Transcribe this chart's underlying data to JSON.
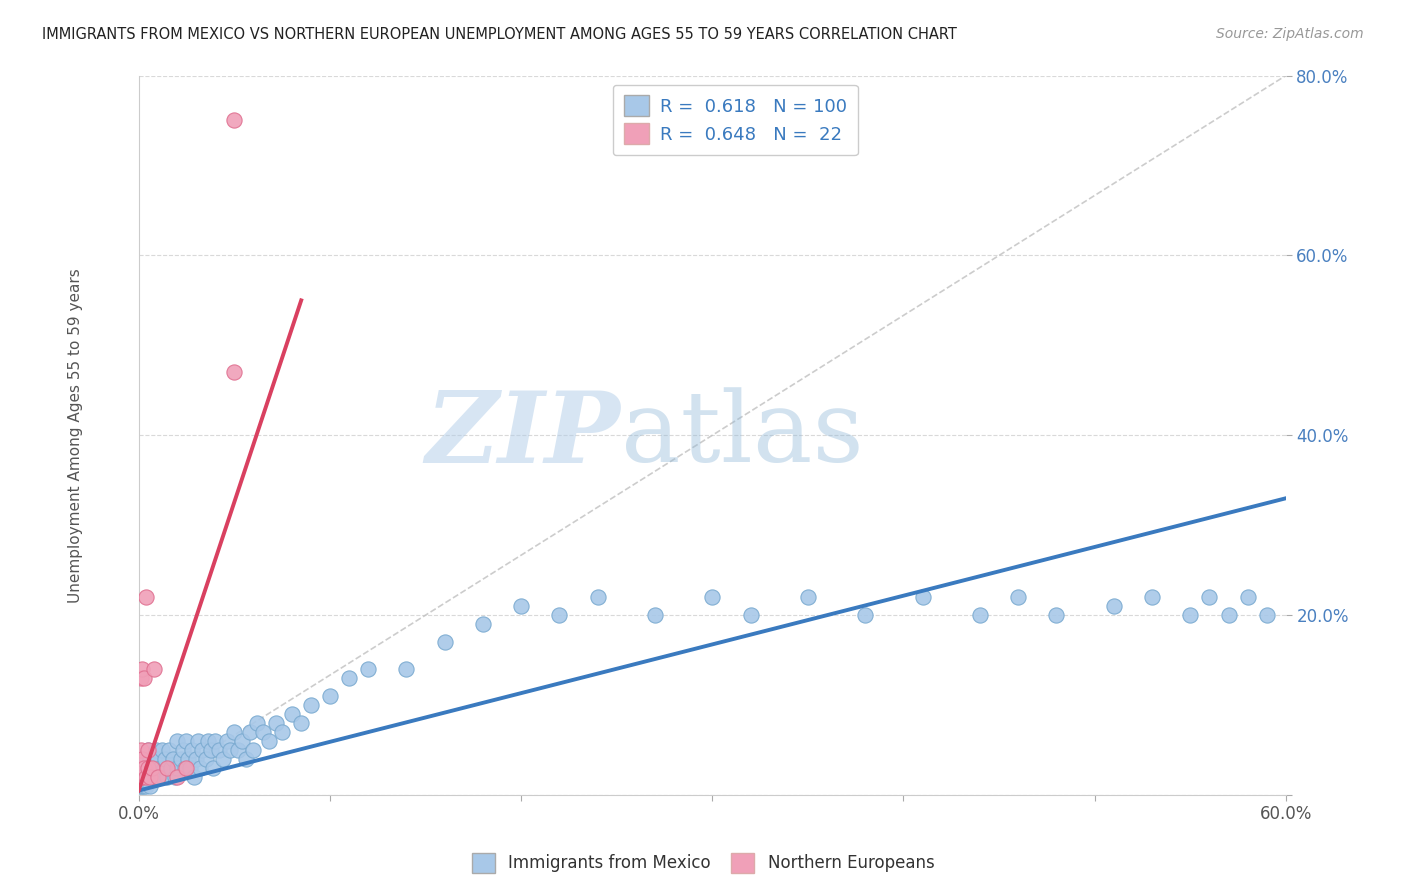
{
  "title": "IMMIGRANTS FROM MEXICO VS NORTHERN EUROPEAN UNEMPLOYMENT AMONG AGES 55 TO 59 YEARS CORRELATION CHART",
  "source": "Source: ZipAtlas.com",
  "ylabel": "Unemployment Among Ages 55 to 59 years",
  "xlim": [
    0.0,
    0.6
  ],
  "ylim": [
    0.0,
    0.8
  ],
  "xticks": [
    0.0,
    0.1,
    0.2,
    0.3,
    0.4,
    0.5,
    0.6
  ],
  "yticks": [
    0.0,
    0.2,
    0.4,
    0.6,
    0.8
  ],
  "xticklabels": [
    "0.0%",
    "",
    "",
    "",
    "",
    "",
    "60.0%"
  ],
  "yticklabels": [
    "",
    "20.0%",
    "40.0%",
    "60.0%",
    "80.0%"
  ],
  "blue_color": "#a8c8e8",
  "pink_color": "#f0a0b8",
  "blue_edge_color": "#7aaad0",
  "pink_edge_color": "#e07090",
  "blue_line_color": "#3a7abf",
  "pink_line_color": "#d94060",
  "R_blue": 0.618,
  "N_blue": 100,
  "R_pink": 0.648,
  "N_pink": 22,
  "watermark_zip": "ZIP",
  "watermark_atlas": "atlas",
  "background_color": "#ffffff",
  "grid_color": "#d0d0d0",
  "legend_label_blue": "Immigrants from Mexico",
  "legend_label_pink": "Northern Europeans",
  "blue_scatter_x": [
    0.001,
    0.001,
    0.001,
    0.002,
    0.002,
    0.002,
    0.002,
    0.003,
    0.003,
    0.003,
    0.003,
    0.004,
    0.004,
    0.004,
    0.005,
    0.005,
    0.005,
    0.006,
    0.006,
    0.006,
    0.007,
    0.007,
    0.008,
    0.008,
    0.009,
    0.009,
    0.01,
    0.01,
    0.011,
    0.012,
    0.012,
    0.013,
    0.014,
    0.015,
    0.016,
    0.017,
    0.018,
    0.019,
    0.02,
    0.02,
    0.022,
    0.023,
    0.024,
    0.025,
    0.026,
    0.027,
    0.028,
    0.029,
    0.03,
    0.031,
    0.032,
    0.033,
    0.035,
    0.036,
    0.038,
    0.039,
    0.04,
    0.042,
    0.044,
    0.046,
    0.048,
    0.05,
    0.052,
    0.054,
    0.056,
    0.058,
    0.06,
    0.062,
    0.065,
    0.068,
    0.072,
    0.075,
    0.08,
    0.085,
    0.09,
    0.1,
    0.11,
    0.12,
    0.14,
    0.16,
    0.18,
    0.2,
    0.22,
    0.24,
    0.27,
    0.3,
    0.32,
    0.35,
    0.38,
    0.41,
    0.44,
    0.46,
    0.48,
    0.51,
    0.53,
    0.55,
    0.56,
    0.57,
    0.58,
    0.59
  ],
  "blue_scatter_y": [
    0.02,
    0.03,
    0.01,
    0.03,
    0.02,
    0.04,
    0.01,
    0.02,
    0.04,
    0.01,
    0.03,
    0.02,
    0.04,
    0.01,
    0.03,
    0.02,
    0.05,
    0.02,
    0.04,
    0.01,
    0.03,
    0.02,
    0.04,
    0.02,
    0.03,
    0.05,
    0.02,
    0.04,
    0.03,
    0.02,
    0.05,
    0.03,
    0.04,
    0.02,
    0.05,
    0.03,
    0.04,
    0.02,
    0.06,
    0.03,
    0.04,
    0.05,
    0.03,
    0.06,
    0.04,
    0.03,
    0.05,
    0.02,
    0.04,
    0.06,
    0.03,
    0.05,
    0.04,
    0.06,
    0.05,
    0.03,
    0.06,
    0.05,
    0.04,
    0.06,
    0.05,
    0.07,
    0.05,
    0.06,
    0.04,
    0.07,
    0.05,
    0.08,
    0.07,
    0.06,
    0.08,
    0.07,
    0.09,
    0.08,
    0.1,
    0.11,
    0.13,
    0.14,
    0.14,
    0.17,
    0.19,
    0.21,
    0.2,
    0.22,
    0.2,
    0.22,
    0.2,
    0.22,
    0.2,
    0.22,
    0.2,
    0.22,
    0.2,
    0.21,
    0.22,
    0.2,
    0.22,
    0.2,
    0.22,
    0.2
  ],
  "pink_scatter_x": [
    0.001,
    0.001,
    0.001,
    0.001,
    0.002,
    0.002,
    0.002,
    0.003,
    0.003,
    0.004,
    0.004,
    0.005,
    0.005,
    0.006,
    0.007,
    0.008,
    0.01,
    0.015,
    0.02,
    0.025,
    0.05,
    0.05
  ],
  "pink_scatter_y": [
    0.02,
    0.03,
    0.05,
    0.13,
    0.02,
    0.04,
    0.14,
    0.03,
    0.13,
    0.02,
    0.22,
    0.03,
    0.05,
    0.02,
    0.03,
    0.14,
    0.02,
    0.03,
    0.02,
    0.03,
    0.75,
    0.47
  ],
  "blue_trend_x": [
    0.0,
    0.6
  ],
  "blue_trend_y": [
    0.005,
    0.33
  ],
  "pink_trend_x": [
    0.0,
    0.085
  ],
  "pink_trend_y": [
    0.005,
    0.55
  ],
  "diag_line_x": [
    0.0,
    0.6
  ],
  "diag_line_y": [
    0.0,
    0.8
  ]
}
